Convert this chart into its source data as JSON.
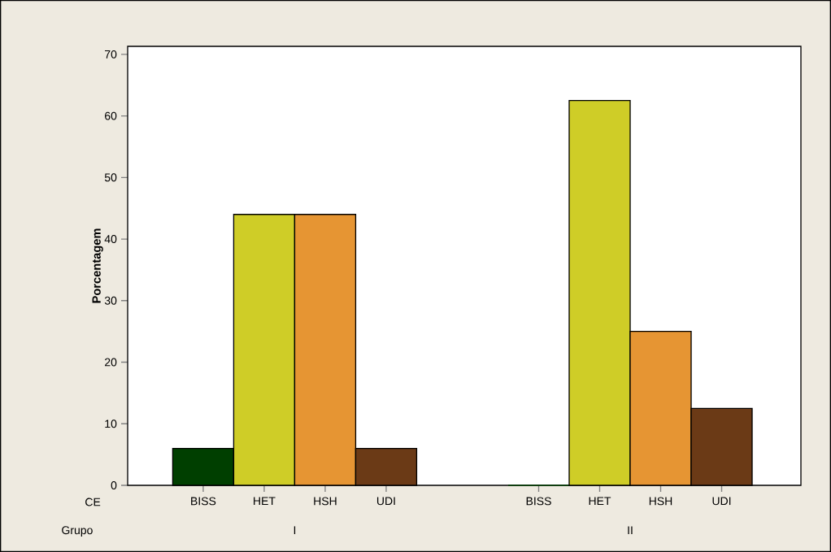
{
  "chart_data": {
    "type": "bar",
    "ylabel": "Porcentagem",
    "xlabel": "Grupo",
    "annotations": [
      "CE"
    ],
    "categories": [
      "I",
      "II"
    ],
    "series": [
      {
        "name": "BISS",
        "color": "#003f00",
        "values": [
          6,
          0
        ]
      },
      {
        "name": "HET",
        "color": "#cfcd27",
        "values": [
          44,
          62.5
        ]
      },
      {
        "name": "HSH",
        "color": "#e69533",
        "values": [
          44,
          25
        ]
      },
      {
        "name": "UDI",
        "color": "#6b3a16",
        "values": [
          6,
          12.5
        ]
      }
    ],
    "ylim": [
      0,
      71.3
    ],
    "yticks": [
      0,
      10,
      20,
      30,
      40,
      50,
      60,
      70
    ],
    "grid": false,
    "legend": false
  }
}
